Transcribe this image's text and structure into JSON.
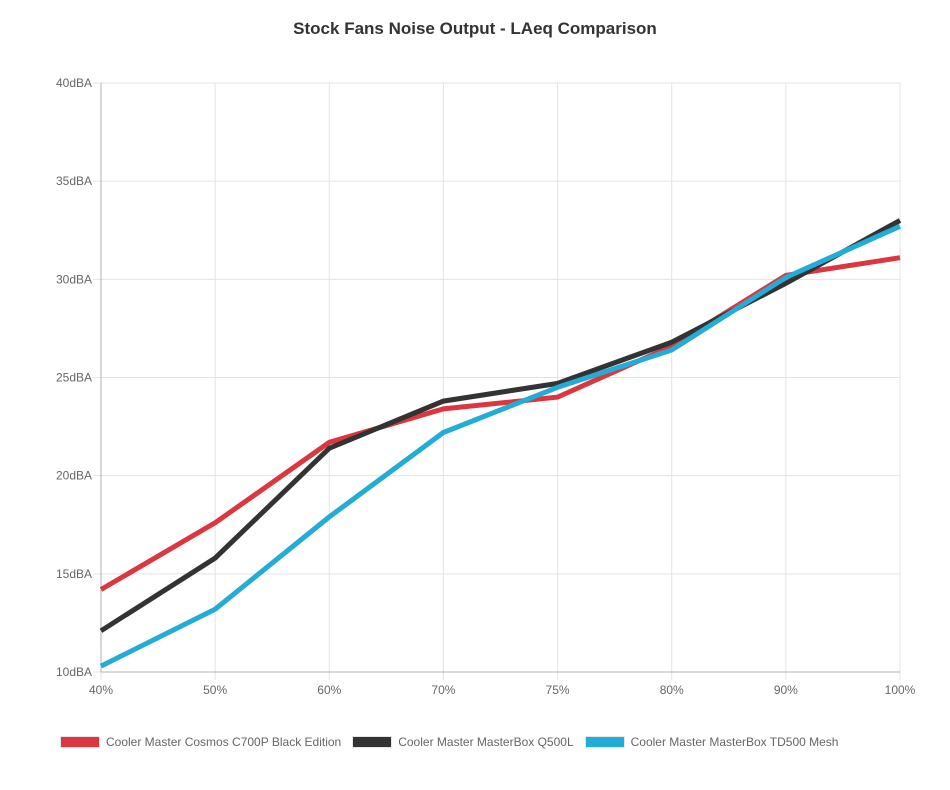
{
  "chart_data": {
    "type": "line",
    "title": "Stock Fans Noise Output - LAeq Comparison",
    "xlabel": "",
    "ylabel": "",
    "categories": [
      "40%",
      "50%",
      "60%",
      "70%",
      "75%",
      "80%",
      "90%",
      "100%"
    ],
    "ylim": [
      10,
      40
    ],
    "yticks": [
      10,
      15,
      20,
      25,
      30,
      35,
      40
    ],
    "ytick_labels": [
      "10dBA",
      "15dBA",
      "20dBA",
      "25dBA",
      "30dBA",
      "35dBA",
      "40dBA"
    ],
    "grid": true,
    "legend_position": "bottom-left",
    "series": [
      {
        "name": "Cooler Master Cosmos C700P Black Edition",
        "color": "#dc3640",
        "values": [
          14.2,
          17.6,
          21.7,
          23.4,
          24.0,
          26.6,
          30.2,
          31.1
        ]
      },
      {
        "name": "Cooler Master MasterBox Q500L",
        "color": "#333333",
        "values": [
          12.1,
          15.8,
          21.4,
          23.8,
          24.7,
          26.8,
          29.8,
          33.0
        ]
      },
      {
        "name": "Cooler Master MasterBox TD500 Mesh",
        "color": "#22acd6",
        "values": [
          10.3,
          13.2,
          17.9,
          22.2,
          24.5,
          26.4,
          30.1,
          32.7
        ]
      }
    ]
  }
}
